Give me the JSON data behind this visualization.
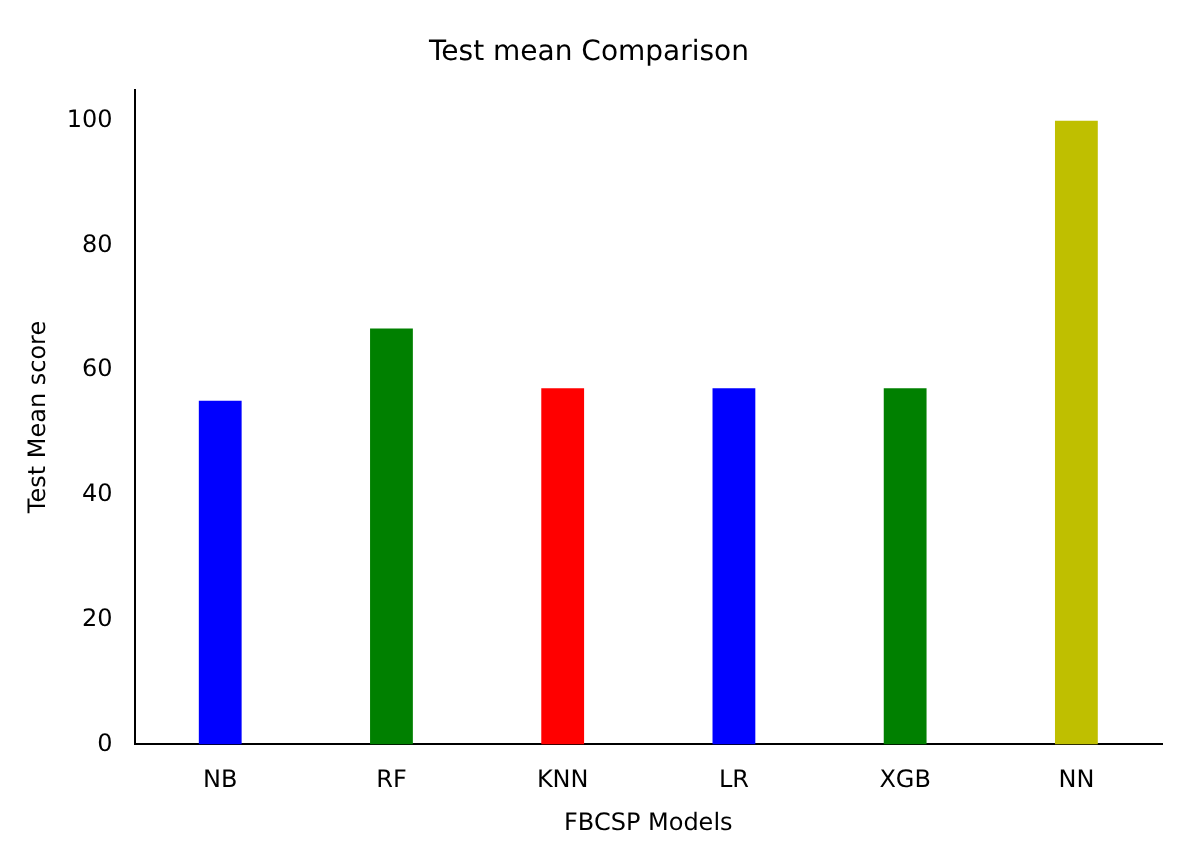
{
  "chart_data": {
    "type": "bar",
    "title": "Test mean Comparison",
    "xlabel": "FBCSP Models",
    "ylabel": "Test Mean score",
    "categories": [
      "NB",
      "RF",
      "KNN",
      "LR",
      "XGB",
      "NN"
    ],
    "values": [
      55.1,
      66.7,
      57.1,
      57.1,
      57.1,
      100
    ],
    "colors": [
      "#0000ff",
      "#008000",
      "#ff0000",
      "#0000ff",
      "#008000",
      "#bfbf00"
    ],
    "ylim": [
      0,
      105
    ],
    "yticks": [
      0,
      20,
      40,
      60,
      80,
      100
    ],
    "grid": false,
    "legend": false
  }
}
